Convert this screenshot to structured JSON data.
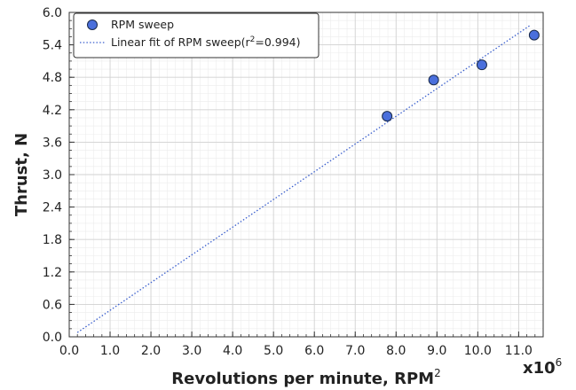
{
  "chart_data": {
    "type": "scatter",
    "xlabel": "Revolutions per minute, RPM",
    "xlabel_sup": "2",
    "ylabel": "Thrust, N",
    "x_multiplier_base": "x10",
    "x_multiplier_exp": "6",
    "xlim": [
      0.0,
      11.6
    ],
    "ylim": [
      0.0,
      6.0
    ],
    "xticks": [
      0.0,
      1.0,
      2.0,
      3.0,
      4.0,
      5.0,
      6.0,
      7.0,
      8.0,
      9.0,
      10.0,
      11.0
    ],
    "yticks": [
      0.0,
      0.6,
      1.2,
      1.8,
      2.4,
      3.0,
      3.6,
      4.2,
      4.8,
      5.4,
      6.0
    ],
    "grid": true,
    "legend_position": "top-left",
    "marker_color": "#4a6fdc",
    "fit_color": "#3a5fcd",
    "series": [
      {
        "name": "RPM sweep",
        "x": [
          7.78,
          8.92,
          10.1,
          11.38
        ],
        "y": [
          4.08,
          4.75,
          5.03,
          5.58
        ]
      }
    ],
    "fit": {
      "name_prefix": "Linear fit of RPM sweep(r",
      "name_sup": "2",
      "name_suffix": "=0.994)",
      "x": [
        0.2,
        11.3
      ],
      "y": [
        0.08,
        5.77
      ]
    }
  }
}
